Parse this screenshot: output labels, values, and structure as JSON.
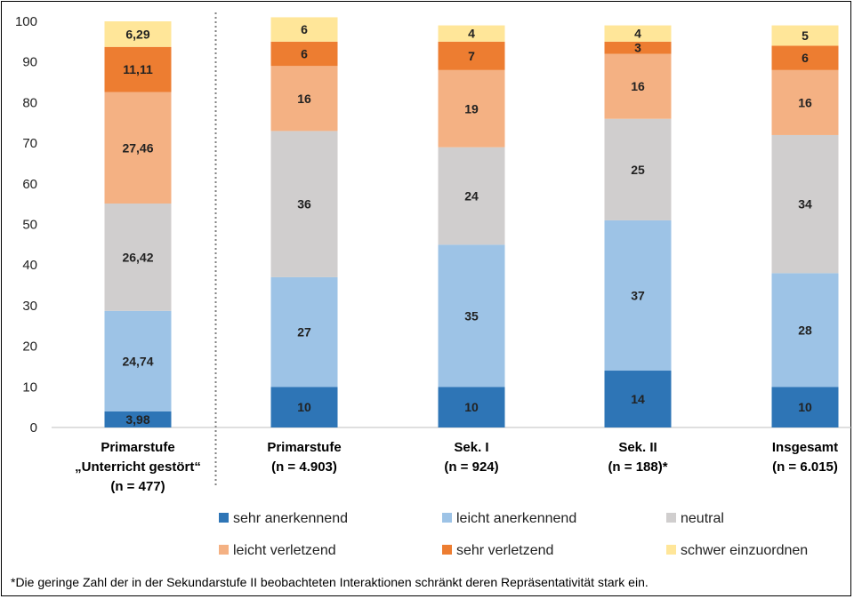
{
  "chart_data": {
    "type": "bar",
    "stacked": true,
    "ylim": [
      0,
      100
    ],
    "yticks": [
      0,
      10,
      20,
      30,
      40,
      50,
      60,
      70,
      80,
      90,
      100
    ],
    "categories": [
      {
        "lines": [
          "Primarstufe",
          "„Unterricht gestört“",
          "(n = 477)"
        ]
      },
      {
        "lines": [
          "Primarstufe",
          "(n = 4.903)"
        ]
      },
      {
        "lines": [
          "Sek. I",
          "(n = 924)"
        ]
      },
      {
        "lines": [
          "Sek. II",
          "(n = 188)*"
        ]
      },
      {
        "lines": [
          "Insgesamt",
          "(n = 6.015)"
        ]
      }
    ],
    "series": [
      {
        "name": "sehr anerkennend",
        "color": "#2e75b6",
        "values": [
          3.98,
          10,
          10,
          14,
          10
        ],
        "labels": [
          "3,98",
          "10",
          "10",
          "14",
          "10"
        ]
      },
      {
        "name": "leicht anerkennend",
        "color": "#9dc3e6",
        "values": [
          24.74,
          27,
          35,
          37,
          28
        ],
        "labels": [
          "24,74",
          "27",
          "35",
          "37",
          "28"
        ]
      },
      {
        "name": "neutral",
        "color": "#d0cece",
        "values": [
          26.42,
          36,
          24,
          25,
          34
        ],
        "labels": [
          "26,42",
          "36",
          "24",
          "25",
          "34"
        ]
      },
      {
        "name": "leicht verletzend",
        "color": "#f4b183",
        "values": [
          27.46,
          16,
          19,
          16,
          16
        ],
        "labels": [
          "27,46",
          "16",
          "19",
          "16",
          "16"
        ]
      },
      {
        "name": "sehr verletzend",
        "color": "#ed7d31",
        "values": [
          11.11,
          6,
          7,
          3,
          6
        ],
        "labels": [
          "11,11",
          "6",
          "7",
          "3",
          "6"
        ]
      },
      {
        "name": "schwer einzuordnen",
        "color": "#ffe699",
        "values": [
          6.29,
          6,
          4,
          4,
          5
        ],
        "labels": [
          "6,29",
          "6",
          "4",
          "4",
          "5"
        ]
      }
    ],
    "separator_after_category": 0,
    "footnote": "*Die geringe Zahl der in der Sekundarstufe II beobachteten Interaktionen schränkt deren Repräsentativität stark ein."
  }
}
